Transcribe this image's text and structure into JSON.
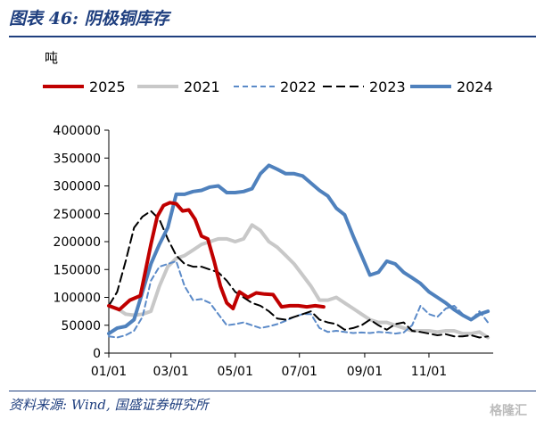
{
  "header": {
    "title": "图表 46:  阴极铜库存"
  },
  "footer": {
    "source": "资料来源:  Wind, 国盛证券研究所",
    "watermark": "格隆汇"
  },
  "chart_data": {
    "type": "line",
    "title": "",
    "ylabel": "吨",
    "xlabel": "",
    "ylim": [
      0,
      400000
    ],
    "y_ticks": [
      0,
      50000,
      100000,
      150000,
      200000,
      250000,
      300000,
      350000,
      400000
    ],
    "x_ticks": [
      "01/01",
      "03/01",
      "05/01",
      "07/01",
      "09/01",
      "11/01"
    ],
    "x_tick_days": [
      0,
      59,
      120,
      181,
      243,
      304
    ],
    "xlim_days": [
      0,
      365
    ],
    "legend_position": "top",
    "grid": false,
    "series": [
      {
        "name": "2025",
        "color": "#c00000",
        "style": "solid",
        "width": 4,
        "x": [
          0,
          10,
          20,
          30,
          40,
          46,
          52,
          58,
          64,
          70,
          76,
          82,
          88,
          94,
          100,
          106,
          112,
          118,
          124,
          132,
          140,
          148,
          156,
          164,
          172,
          180,
          188,
          196,
          204
        ],
        "y": [
          85000,
          78000,
          95000,
          103000,
          195000,
          245000,
          265000,
          270000,
          268000,
          255000,
          257000,
          240000,
          210000,
          205000,
          165000,
          120000,
          90000,
          80000,
          110000,
          100000,
          108000,
          106000,
          105000,
          83000,
          85000,
          85000,
          83000,
          85000,
          83000
        ]
      },
      {
        "name": "2021",
        "color": "#c8c8c8",
        "style": "solid",
        "width": 4,
        "x": [
          0,
          8,
          16,
          24,
          32,
          40,
          48,
          56,
          64,
          72,
          80,
          88,
          96,
          104,
          112,
          120,
          128,
          136,
          144,
          152,
          160,
          168,
          176,
          184,
          192,
          200,
          208,
          216,
          224,
          232,
          240,
          248,
          256,
          264,
          272,
          280,
          288,
          296,
          304,
          312,
          320,
          328,
          336,
          344,
          352,
          360
        ],
        "y": [
          85000,
          80000,
          70000,
          68000,
          70000,
          75000,
          120000,
          155000,
          170000,
          175000,
          185000,
          195000,
          200000,
          205000,
          205000,
          200000,
          205000,
          230000,
          220000,
          200000,
          190000,
          175000,
          160000,
          140000,
          120000,
          95000,
          95000,
          100000,
          90000,
          80000,
          70000,
          60000,
          55000,
          55000,
          50000,
          45000,
          40000,
          40000,
          40000,
          38000,
          40000,
          40000,
          35000,
          35000,
          38000,
          28000
        ]
      },
      {
        "name": "2022",
        "color": "#5b8ac8",
        "style": "dashed",
        "width": 2,
        "x": [
          0,
          8,
          16,
          24,
          32,
          40,
          48,
          56,
          64,
          72,
          80,
          88,
          96,
          104,
          112,
          120,
          128,
          136,
          144,
          152,
          160,
          168,
          176,
          184,
          192,
          200,
          208,
          216,
          224,
          232,
          240,
          248,
          256,
          264,
          272,
          280,
          288,
          296,
          304,
          312,
          320,
          328,
          336,
          344,
          352,
          360
        ],
        "y": [
          30000,
          28000,
          32000,
          40000,
          65000,
          130000,
          155000,
          160000,
          165000,
          120000,
          95000,
          97000,
          90000,
          70000,
          50000,
          52000,
          55000,
          50000,
          45000,
          48000,
          52000,
          58000,
          65000,
          70000,
          70000,
          45000,
          38000,
          40000,
          38000,
          36000,
          37000,
          36000,
          38000,
          37000,
          35000,
          37000,
          50000,
          85000,
          70000,
          65000,
          80000,
          85000,
          70000,
          60000,
          75000,
          55000
        ]
      },
      {
        "name": "2023",
        "color": "#000000",
        "style": "dashed",
        "width": 2,
        "x": [
          0,
          8,
          16,
          24,
          32,
          40,
          48,
          56,
          64,
          72,
          80,
          88,
          96,
          104,
          112,
          120,
          128,
          136,
          144,
          152,
          160,
          168,
          176,
          184,
          192,
          200,
          208,
          216,
          224,
          232,
          240,
          248,
          256,
          264,
          272,
          280,
          288,
          296,
          304,
          312,
          320,
          328,
          336,
          344,
          352,
          360
        ],
        "y": [
          85000,
          110000,
          165000,
          225000,
          245000,
          255000,
          240000,
          205000,
          175000,
          160000,
          155000,
          155000,
          150000,
          145000,
          130000,
          110000,
          100000,
          90000,
          85000,
          75000,
          62000,
          60000,
          65000,
          70000,
          75000,
          60000,
          55000,
          52000,
          42000,
          45000,
          50000,
          60000,
          50000,
          42000,
          52000,
          55000,
          40000,
          38000,
          35000,
          32000,
          34000,
          30000,
          30000,
          32000,
          28000,
          30000
        ]
      },
      {
        "name": "2024",
        "color": "#4f81bd",
        "style": "solid",
        "width": 4,
        "x": [
          0,
          8,
          16,
          24,
          32,
          40,
          48,
          56,
          64,
          72,
          80,
          88,
          96,
          104,
          112,
          120,
          128,
          136,
          144,
          152,
          160,
          168,
          176,
          184,
          192,
          200,
          208,
          216,
          224,
          232,
          240,
          248,
          256,
          264,
          272,
          280,
          288,
          296,
          304,
          312,
          320,
          328,
          336,
          344,
          352,
          360
        ],
        "y": [
          35000,
          45000,
          48000,
          60000,
          110000,
          160000,
          195000,
          225000,
          285000,
          285000,
          290000,
          292000,
          298000,
          300000,
          288000,
          288000,
          290000,
          295000,
          322000,
          337000,
          330000,
          322000,
          322000,
          318000,
          305000,
          292000,
          282000,
          260000,
          248000,
          210000,
          175000,
          140000,
          145000,
          165000,
          160000,
          145000,
          135000,
          125000,
          110000,
          100000,
          90000,
          78000,
          68000,
          60000,
          70000,
          75000
        ]
      }
    ]
  }
}
